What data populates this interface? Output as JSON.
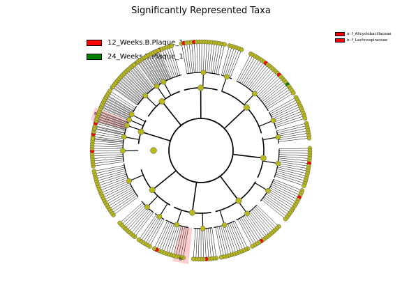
{
  "title": "Significantly Represented Taxa",
  "legend": [
    {
      "label": "12_Weeks.B.Plaque_1",
      "color": "#ff0000"
    },
    {
      "label": "24_Weeks.B.Plaque_1",
      "color": "#008000"
    }
  ],
  "clades": [
    {
      "letter": "a",
      "label": "a: f_Alicyclobacillaceae",
      "color": "#ff0000"
    },
    {
      "letter": "b",
      "label": "b: f_Lachnospiraceae",
      "color": "#ff0000"
    }
  ],
  "colors": {
    "neutral": "#b8b81a",
    "enriched_12": "#ff0000",
    "enriched_24": "#008000",
    "highlight": "#ffb3b3"
  },
  "highlighted_leaf_slots": [
    7,
    8,
    9,
    10,
    11,
    12
  ]
}
